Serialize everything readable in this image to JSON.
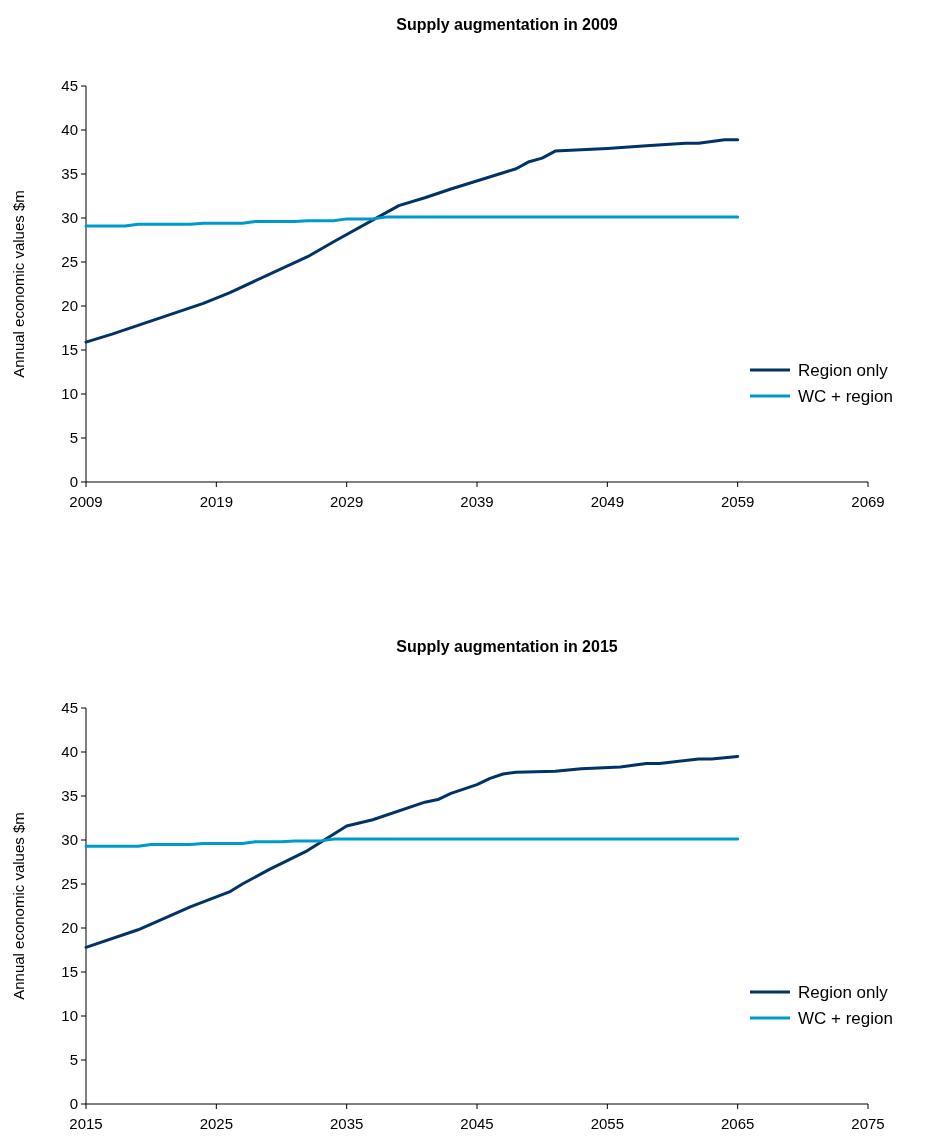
{
  "chart_data": [
    {
      "type": "line",
      "title": "Supply augmentation in 2009",
      "ylabel": "Annual economic values $m",
      "xlim": [
        2009,
        2069
      ],
      "xticks": [
        2009,
        2019,
        2029,
        2039,
        2049,
        2059,
        2069
      ],
      "ylim": [
        0,
        45
      ],
      "yticks": [
        0,
        5,
        10,
        15,
        20,
        25,
        30,
        35,
        40,
        45
      ],
      "grid": false,
      "legend": "right",
      "marker": "none",
      "line_style": "solid",
      "series": [
        {
          "name": "Region only",
          "color": "#003366",
          "x": [
            2009,
            2011,
            2018,
            2020,
            2026,
            2028,
            2033,
            2035,
            2037,
            2042,
            2043,
            2044,
            2045,
            2049,
            2052,
            2055,
            2056,
            2058,
            2059
          ],
          "values": [
            15.9,
            16.8,
            20.3,
            21.5,
            25.6,
            27.3,
            31.4,
            32.3,
            33.3,
            35.6,
            36.4,
            36.8,
            37.6,
            37.9,
            38.2,
            38.5,
            38.5,
            38.9,
            38.9
          ]
        },
        {
          "name": "WC + region",
          "color": "#0099cc",
          "x": [
            2009,
            2012,
            2013,
            2017,
            2018,
            2021,
            2022,
            2025,
            2026,
            2028,
            2029,
            2031,
            2032,
            2059
          ],
          "values": [
            29.1,
            29.1,
            29.3,
            29.3,
            29.4,
            29.4,
            29.6,
            29.6,
            29.7,
            29.7,
            29.9,
            29.9,
            30.1,
            30.1
          ]
        }
      ]
    },
    {
      "type": "line",
      "title": "Supply augmentation in 2015",
      "ylabel": "Annual economic values $m",
      "xlim": [
        2015,
        2075
      ],
      "xticks": [
        2015,
        2025,
        2035,
        2045,
        2055,
        2065,
        2075
      ],
      "ylim": [
        0,
        45
      ],
      "yticks": [
        0,
        5,
        10,
        15,
        20,
        25,
        30,
        35,
        40,
        45
      ],
      "grid": false,
      "legend": "right",
      "marker": "none",
      "line_style": "solid",
      "series": [
        {
          "name": "Region only",
          "color": "#003366",
          "x": [
            2015,
            2019,
            2021,
            2023,
            2026,
            2027,
            2029,
            2032,
            2035,
            2037,
            2041,
            2042,
            2043,
            2045,
            2046,
            2047,
            2048,
            2051,
            2053,
            2056,
            2058,
            2059,
            2062,
            2063,
            2065
          ],
          "values": [
            17.8,
            19.8,
            21.1,
            22.4,
            24.1,
            25.0,
            26.6,
            28.8,
            31.6,
            32.3,
            34.3,
            34.6,
            35.3,
            36.3,
            37.0,
            37.5,
            37.7,
            37.8,
            38.1,
            38.3,
            38.7,
            38.7,
            39.2,
            39.2,
            39.5
          ]
        },
        {
          "name": "WC + region",
          "color": "#0099cc",
          "x": [
            2015,
            2019,
            2020,
            2023,
            2024,
            2027,
            2028,
            2030,
            2031,
            2033,
            2034,
            2065
          ],
          "values": [
            29.3,
            29.3,
            29.5,
            29.5,
            29.6,
            29.6,
            29.8,
            29.8,
            29.9,
            29.9,
            30.1,
            30.1
          ]
        }
      ]
    }
  ]
}
